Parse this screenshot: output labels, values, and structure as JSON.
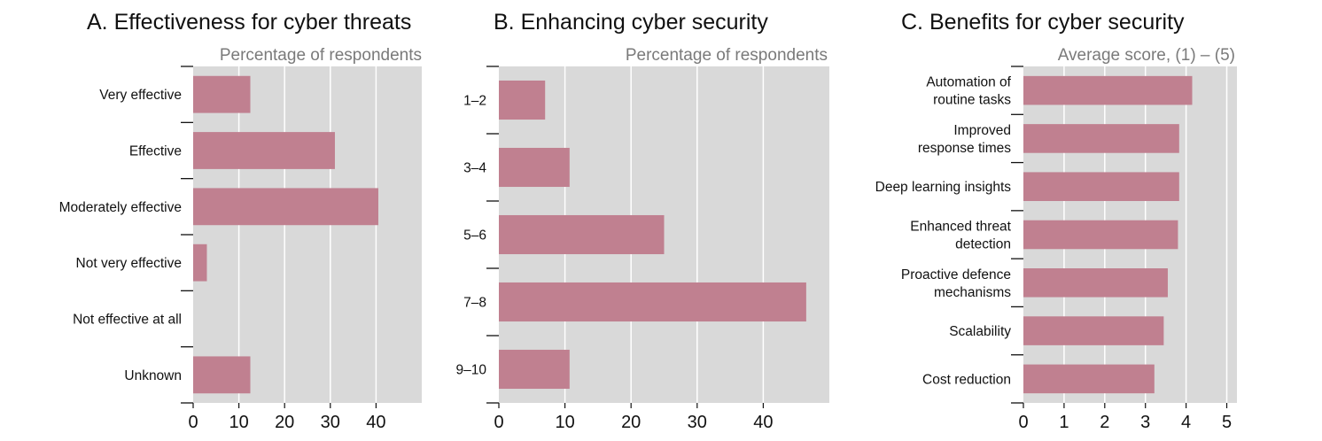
{
  "chart_data": [
    {
      "type": "bar",
      "orientation": "horizontal",
      "title": "A. Effectiveness for cyber threats",
      "unit_label": "Percentage of respondents",
      "categories": [
        "Very effective",
        "Effective",
        "Moderately effective",
        "Not very effective",
        "Not effective at all",
        "Unknown"
      ],
      "values": [
        12.5,
        31,
        40.5,
        3,
        0,
        12.5
      ],
      "xlim": [
        0,
        50
      ],
      "xticks": [
        0,
        10,
        20,
        30,
        40
      ],
      "grid": true,
      "bar_color": "#c08090"
    },
    {
      "type": "bar",
      "orientation": "horizontal",
      "title": "B. Enhancing cyber security",
      "unit_label": "Percentage of respondents",
      "categories": [
        "1–2",
        "3–4",
        "5–6",
        "7–8",
        "9–10"
      ],
      "values": [
        7,
        10.7,
        25,
        46.5,
        10.7
      ],
      "xlim": [
        0,
        50
      ],
      "xticks": [
        0,
        10,
        20,
        30,
        40
      ],
      "grid": true,
      "bar_color": "#c08090"
    },
    {
      "type": "bar",
      "orientation": "horizontal",
      "title": "C. Benefits for cyber security",
      "unit_label": "Average score, (1) – (5)",
      "categories": [
        [
          "Automation of",
          "routine tasks"
        ],
        [
          "Improved",
          "response times"
        ],
        [
          "Deep learning insights"
        ],
        [
          "Enhanced threat",
          "detection"
        ],
        [
          "Proactive defence",
          "mechanisms"
        ],
        [
          "Scalability"
        ],
        [
          "Cost reduction"
        ]
      ],
      "values": [
        4.15,
        3.83,
        3.83,
        3.8,
        3.55,
        3.45,
        3.22
      ],
      "xlim": [
        0,
        5.25
      ],
      "xticks": [
        0,
        1,
        2,
        3,
        4,
        5
      ],
      "grid": true,
      "bar_color": "#c08090"
    }
  ]
}
